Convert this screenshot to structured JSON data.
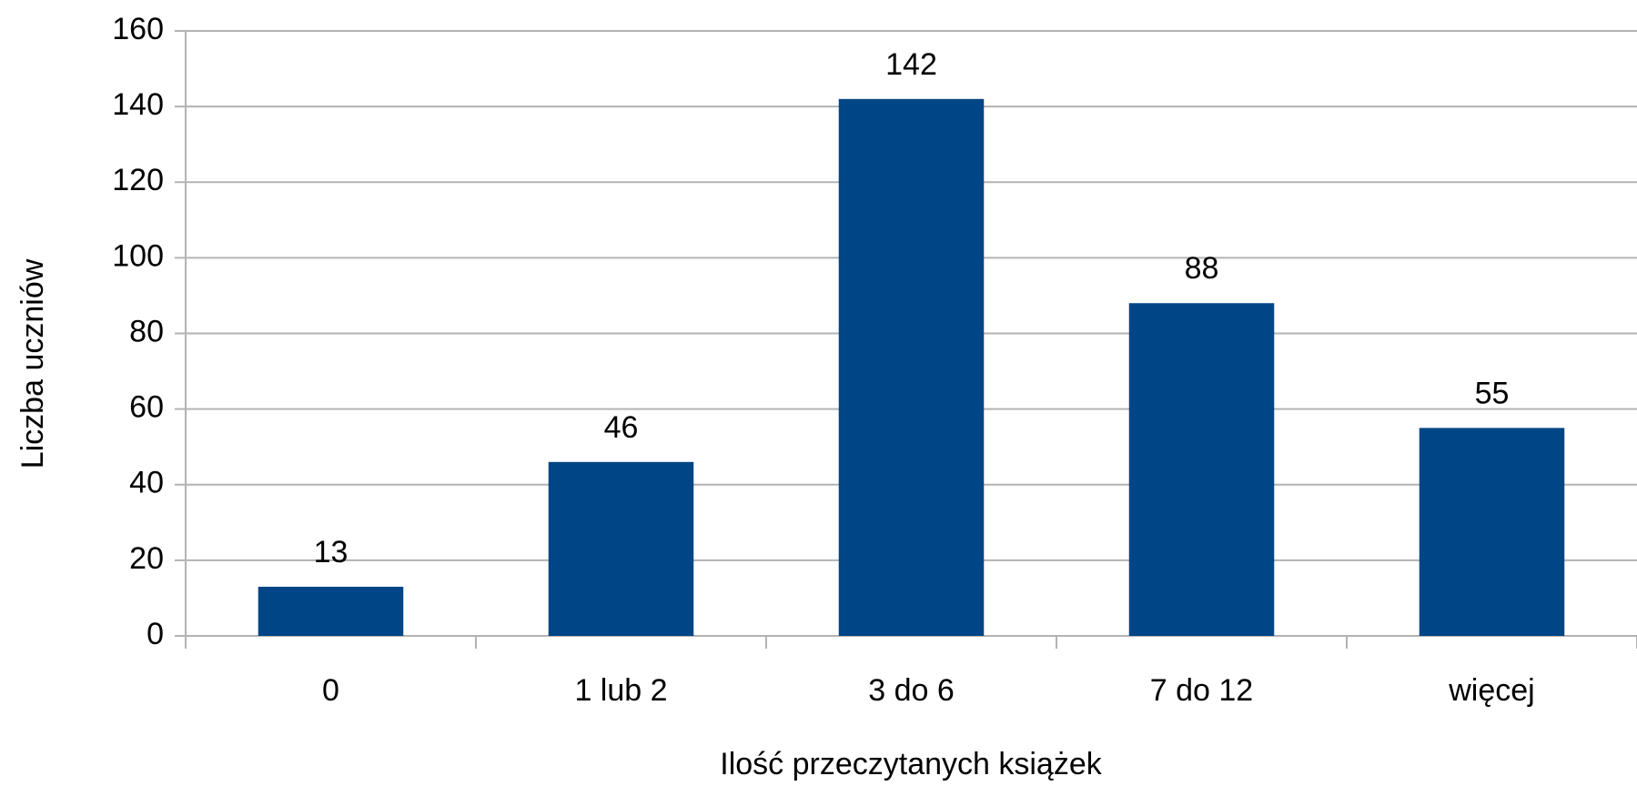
{
  "chart_data": {
    "type": "bar",
    "categories": [
      "0",
      "1 lub 2",
      "3 do 6",
      "7 do 12",
      "więcej"
    ],
    "values": [
      13,
      46,
      142,
      88,
      55
    ],
    "color": "#004586",
    "xlabel": "Ilość przeczytanych książek",
    "ylabel": "Liczba uczniów",
    "ylim": [
      0,
      160
    ],
    "yticks": [
      0,
      20,
      40,
      60,
      80,
      100,
      120,
      140,
      160
    ],
    "grid": true,
    "data_labels": true
  }
}
